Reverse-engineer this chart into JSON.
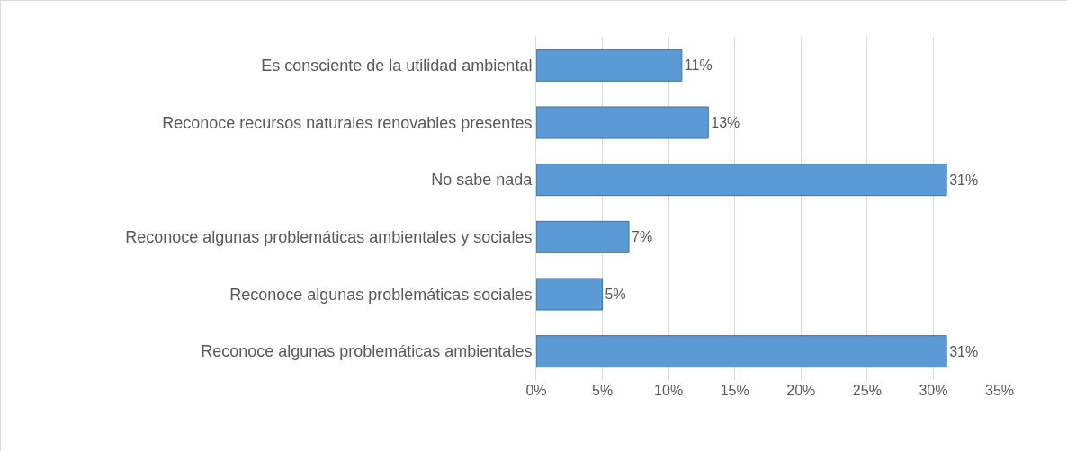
{
  "chart_data": {
    "type": "bar",
    "orientation": "horizontal",
    "categories": [
      "Es consciente de la utilidad ambiental",
      "Reconoce recursos naturales renovables presentes",
      "No sabe nada",
      "Reconoce algunas problemáticas ambientales y sociales",
      "Reconoce algunas problemáticas sociales",
      "Reconoce algunas problemáticas ambientales"
    ],
    "values": [
      11,
      13,
      31,
      7,
      5,
      31
    ],
    "value_labels": [
      "11%",
      "13%",
      "31%",
      "7%",
      "5%",
      "31%"
    ],
    "color": "#5b9bd5",
    "xlim": [
      0,
      35
    ],
    "xticks": [
      {
        "value": 0,
        "label": "0%"
      },
      {
        "value": 5,
        "label": "5%"
      },
      {
        "value": 10,
        "label": "10%"
      },
      {
        "value": 15,
        "label": "15%"
      },
      {
        "value": 20,
        "label": "20%"
      },
      {
        "value": 25,
        "label": "25%"
      },
      {
        "value": 30,
        "label": "30%"
      },
      {
        "value": 35,
        "label": "35%"
      }
    ],
    "grid": "x"
  }
}
